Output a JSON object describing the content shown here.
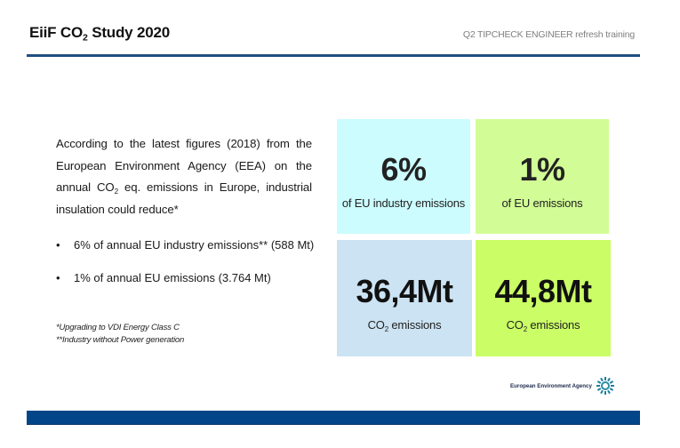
{
  "header": {
    "title_pre": "EiiF CO",
    "title_sub": "2",
    "title_post": " Study 2020",
    "subtitle": "Q2 TIPCHECK ENGINEER refresh training"
  },
  "intro": {
    "part1": "According to the latest figures (2018) from the European Environment Agency (EEA) on the annual CO",
    "sub": "2",
    "part2": " eq. emissions in Europe, industrial insulation could reduce*"
  },
  "bullets": [
    {
      "marker": "•",
      "text": "6% of annual EU industry emissions** (588 Mt)"
    },
    {
      "marker": "•",
      "text": "1% of annual EU emissions (3.764 Mt)"
    }
  ],
  "footnotes": [
    "*Upgrading to VDI Energy Class C",
    "**Industry without Power generation"
  ],
  "tiles": [
    {
      "value": "6%",
      "caption": "of EU industry emissions",
      "color": "#ccfcfe"
    },
    {
      "value": "1%",
      "caption": "of EU emissions",
      "color": "#d2fd96"
    },
    {
      "value": "36,4Mt",
      "caption_pre": "CO",
      "caption_sub": "2",
      "caption_post": " emissions",
      "color": "#cce3f3"
    },
    {
      "value": "44,8Mt",
      "caption_pre": "CO",
      "caption_sub": "2",
      "caption_post": " emissions",
      "color": "#cbfe66"
    }
  ],
  "logo": {
    "text": "European Environment Agency",
    "icon": "eea-sun-icon"
  },
  "colors": {
    "accent": "#1f4e82",
    "footer_bar": "#024588"
  }
}
